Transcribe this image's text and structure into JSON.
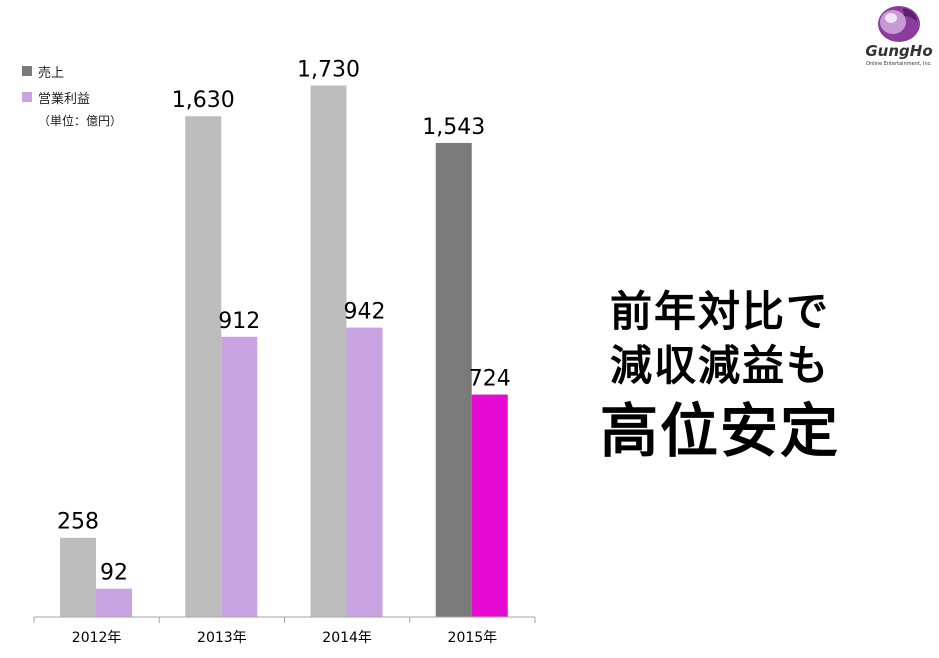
{
  "chart_data": {
    "type": "bar",
    "categories": [
      "2012年",
      "2013年",
      "2014年",
      "2015年"
    ],
    "series": [
      {
        "name": "売上",
        "values": [
          258,
          1630,
          1730,
          1543
        ],
        "labels": [
          "258",
          "1,630",
          "1,730",
          "1,543"
        ]
      },
      {
        "name": "営業利益",
        "values": [
          92,
          912,
          942,
          724
        ],
        "labels": [
          "92",
          "912",
          "942",
          "724"
        ]
      }
    ],
    "unit_note": "（単位：億円）",
    "ylim": [
      0,
      1800
    ],
    "grid": false,
    "legend_position": "top-left"
  },
  "colors": {
    "sales": "#bdbdbd",
    "profit": "#c9a3e2",
    "sales_highlight": "#7a7a7a",
    "profit_highlight": "#e60ad2",
    "axis": "#a6a6a6"
  },
  "message": {
    "line1": "前年対比で",
    "line2": "減収減益も",
    "line3": "高位安定"
  },
  "logo": {
    "name": "GungHo",
    "subtitle": "Online Entertainment, Inc."
  }
}
